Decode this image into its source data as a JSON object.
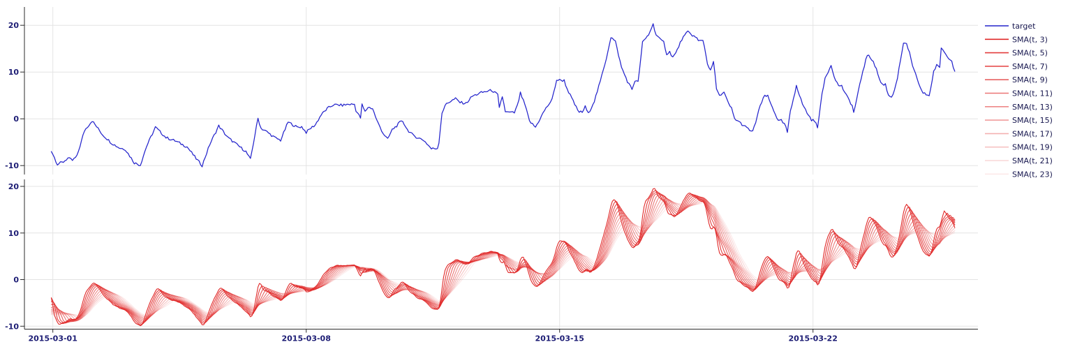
{
  "figure": {
    "background": "#ffffff",
    "grid_color": "#e4e4e4",
    "axis_color": "#2b2b2b",
    "tick_label_color": "#1c1c74",
    "legend_text_color": "#16164e"
  },
  "chart_data": {
    "type": "line",
    "title": "",
    "xlabel": "",
    "ylabel": "",
    "x_unit": "hours since 2015-03-01 00:00",
    "x_tick_labels": [
      "2015-03-01",
      "2015-03-08",
      "2015-03-15",
      "2015-03-22"
    ],
    "x_tick_hours": [
      0,
      168,
      336,
      504
    ],
    "xlim_hours": [
      -19,
      613
    ],
    "grid": true,
    "legend_position": "right-outside",
    "panels": [
      {
        "id": "target-panel",
        "yticks": [
          20,
          10,
          0,
          -10
        ],
        "ylim": [
          -11.9,
          23.9
        ],
        "series": [
          "target"
        ]
      },
      {
        "id": "sma-panel",
        "yticks": [
          20,
          10,
          0,
          -10
        ],
        "ylim": [
          -10.7,
          21.3
        ],
        "series": [
          "SMA(t, 3)",
          "SMA(t, 5)",
          "SMA(t, 7)",
          "SMA(t, 9)",
          "SMA(t, 11)",
          "SMA(t, 13)",
          "SMA(t, 15)",
          "SMA(t, 17)",
          "SMA(t, 19)",
          "SMA(t, 21)",
          "SMA(t, 23)"
        ]
      }
    ],
    "target": {
      "label": "target",
      "color": "#2424cc",
      "noise_amplitude": 0.27,
      "points": [
        [
          -1,
          -6.8
        ],
        [
          3,
          -9.7
        ],
        [
          7,
          -9.2
        ],
        [
          10,
          -8.4
        ],
        [
          13,
          -8.9
        ],
        [
          16,
          -8.0
        ],
        [
          21,
          -2.5
        ],
        [
          26,
          -0.4
        ],
        [
          33,
          -3.4
        ],
        [
          39,
          -5.2
        ],
        [
          44,
          -6.2
        ],
        [
          48,
          -6.5
        ],
        [
          54,
          -9.4
        ],
        [
          58,
          -9.9
        ],
        [
          62,
          -6.0
        ],
        [
          68,
          -1.8
        ],
        [
          75,
          -4.0
        ],
        [
          81,
          -4.7
        ],
        [
          89,
          -6.0
        ],
        [
          95,
          -8.5
        ],
        [
          99,
          -10.0
        ],
        [
          104,
          -5.5
        ],
        [
          110,
          -1.5
        ],
        [
          116,
          -4.0
        ],
        [
          122,
          -5.5
        ],
        [
          128,
          -7.0
        ],
        [
          131,
          -8.7
        ],
        [
          136,
          0.1
        ],
        [
          138,
          -2.0
        ],
        [
          142,
          -2.8
        ],
        [
          147,
          -4.0
        ],
        [
          151,
          -4.6
        ],
        [
          156,
          -0.7
        ],
        [
          162,
          -1.8
        ],
        [
          165,
          -1.7
        ],
        [
          168,
          -2.9
        ],
        [
          171,
          -2.0
        ],
        [
          174,
          -1.3
        ],
        [
          178,
          0.9
        ],
        [
          182,
          2.2
        ],
        [
          186,
          3.0
        ],
        [
          192,
          2.9
        ],
        [
          196,
          3.1
        ],
        [
          200,
          3.1
        ],
        [
          201,
          1.8
        ],
        [
          204,
          0.2
        ],
        [
          205,
          3.0
        ],
        [
          207,
          1.5
        ],
        [
          209,
          2.5
        ],
        [
          212,
          2.2
        ],
        [
          215,
          -0.5
        ],
        [
          219,
          -3.1
        ],
        [
          222,
          -4.4
        ],
        [
          225,
          -2.3
        ],
        [
          228,
          -1.5
        ],
        [
          230,
          -0.8
        ],
        [
          232,
          -0.5
        ],
        [
          235,
          -2.3
        ],
        [
          239,
          -3.6
        ],
        [
          246,
          -4.6
        ],
        [
          251,
          -6.4
        ],
        [
          255,
          -6.3
        ],
        [
          256,
          -5.0
        ],
        [
          258,
          1.3
        ],
        [
          261,
          3.3
        ],
        [
          267,
          4.3
        ],
        [
          270,
          3.5
        ],
        [
          274,
          3.3
        ],
        [
          278,
          4.8
        ],
        [
          284,
          5.6
        ],
        [
          291,
          6.1
        ],
        [
          295,
          5.1
        ],
        [
          296,
          2.2
        ],
        [
          298,
          4.8
        ],
        [
          300,
          1.6
        ],
        [
          301,
          1.4
        ],
        [
          306,
          1.3
        ],
        [
          308,
          2.8
        ],
        [
          310,
          5.5
        ],
        [
          313,
          3.0
        ],
        [
          316,
          -0.5
        ],
        [
          320,
          -1.8
        ],
        [
          326,
          1.8
        ],
        [
          331,
          4.1
        ],
        [
          334,
          8.3
        ],
        [
          339,
          8.2
        ],
        [
          341,
          6.4
        ],
        [
          344,
          4.4
        ],
        [
          348,
          1.8
        ],
        [
          349,
          1.5
        ],
        [
          351,
          1.4
        ],
        [
          353,
          2.6
        ],
        [
          355,
          1.1
        ],
        [
          359,
          3.8
        ],
        [
          363,
          8.0
        ],
        [
          367,
          13.0
        ],
        [
          370,
          17.5
        ],
        [
          373,
          16.5
        ],
        [
          377,
          11.0
        ],
        [
          381,
          8.0
        ],
        [
          384,
          6.3
        ],
        [
          386,
          8.2
        ],
        [
          388,
          7.8
        ],
        [
          391,
          16.3
        ],
        [
          395,
          18.0
        ],
        [
          397,
          19.5
        ],
        [
          398,
          20.2
        ],
        [
          400,
          18.0
        ],
        [
          403,
          16.8
        ],
        [
          405,
          16.4
        ],
        [
          407,
          13.9
        ],
        [
          409,
          14.3
        ],
        [
          411,
          13.2
        ],
        [
          413,
          14.0
        ],
        [
          417,
          17.0
        ],
        [
          421,
          18.6
        ],
        [
          424,
          17.9
        ],
        [
          427,
          17.2
        ],
        [
          428,
          16.6
        ],
        [
          431,
          16.9
        ],
        [
          432,
          15.4
        ],
        [
          434,
          11.9
        ],
        [
          436,
          10.2
        ],
        [
          438,
          12.2
        ],
        [
          440,
          6.5
        ],
        [
          441,
          5.5
        ],
        [
          443,
          5.1
        ],
        [
          445,
          5.6
        ],
        [
          448,
          3.2
        ],
        [
          450,
          2.2
        ],
        [
          452,
          0.0
        ],
        [
          454,
          -0.4
        ],
        [
          457,
          -1.2
        ],
        [
          459,
          -1.7
        ],
        [
          462,
          -2.4
        ],
        [
          464,
          -2.8
        ],
        [
          466,
          -0.7
        ],
        [
          468,
          1.8
        ],
        [
          470,
          3.5
        ],
        [
          472,
          5.0
        ],
        [
          474,
          4.8
        ],
        [
          476,
          3.2
        ],
        [
          478,
          1.8
        ],
        [
          480,
          0.3
        ],
        [
          481,
          -0.5
        ],
        [
          483,
          -0.4
        ],
        [
          485,
          -1.2
        ],
        [
          486,
          -1.7
        ],
        [
          487,
          -2.9
        ],
        [
          489,
          1.5
        ],
        [
          492,
          5.7
        ],
        [
          493,
          7.3
        ],
        [
          495,
          5.0
        ],
        [
          497,
          3.2
        ],
        [
          500,
          1.3
        ],
        [
          503,
          -0.2
        ],
        [
          505,
          -0.5
        ],
        [
          507,
          -1.7
        ],
        [
          510,
          5.2
        ],
        [
          512,
          8.7
        ],
        [
          516,
          11.5
        ],
        [
          519,
          8.1
        ],
        [
          521,
          7.2
        ],
        [
          523,
          7.0
        ],
        [
          526,
          5.0
        ],
        [
          528,
          4.0
        ],
        [
          530,
          2.8
        ],
        [
          531,
          1.3
        ],
        [
          534,
          5.7
        ],
        [
          537,
          10.2
        ],
        [
          540,
          13.7
        ],
        [
          542,
          13.0
        ],
        [
          544,
          12.4
        ],
        [
          547,
          9.6
        ],
        [
          549,
          7.7
        ],
        [
          551,
          7.2
        ],
        [
          552,
          7.4
        ],
        [
          554,
          5.0
        ],
        [
          556,
          4.7
        ],
        [
          557,
          5.2
        ],
        [
          560,
          8.7
        ],
        [
          562,
          12.6
        ],
        [
          564,
          15.9
        ],
        [
          566,
          16.1
        ],
        [
          568,
          14.1
        ],
        [
          570,
          11.1
        ],
        [
          573,
          8.7
        ],
        [
          575,
          6.7
        ],
        [
          577,
          5.5
        ],
        [
          579,
          5.2
        ],
        [
          581,
          5.0
        ],
        [
          583,
          8.1
        ],
        [
          584,
          10.2
        ],
        [
          586,
          11.4
        ],
        [
          588,
          10.9
        ],
        [
          589,
          15.3
        ],
        [
          591,
          14.3
        ],
        [
          593,
          13.3
        ],
        [
          596,
          12.6
        ],
        [
          597,
          11.0
        ],
        [
          598,
          10.4
        ]
      ]
    },
    "sma": {
      "color": "#e02828",
      "windows": [
        3,
        5,
        7,
        9,
        11,
        13,
        15,
        17,
        19,
        21,
        23
      ],
      "labels": [
        "SMA(t, 3)",
        "SMA(t, 5)",
        "SMA(t, 7)",
        "SMA(t, 9)",
        "SMA(t, 11)",
        "SMA(t, 13)",
        "SMA(t, 15)",
        "SMA(t, 17)",
        "SMA(t, 19)",
        "SMA(t, 21)",
        "SMA(t, 23)"
      ],
      "alpha_range": [
        1.0,
        0.1
      ]
    },
    "legend": {
      "entries": [
        "target",
        "SMA(t, 3)",
        "SMA(t, 5)",
        "SMA(t, 7)",
        "SMA(t, 9)",
        "SMA(t, 11)",
        "SMA(t, 13)",
        "SMA(t, 15)",
        "SMA(t, 17)",
        "SMA(t, 19)",
        "SMA(t, 21)",
        "SMA(t, 23)"
      ]
    }
  }
}
